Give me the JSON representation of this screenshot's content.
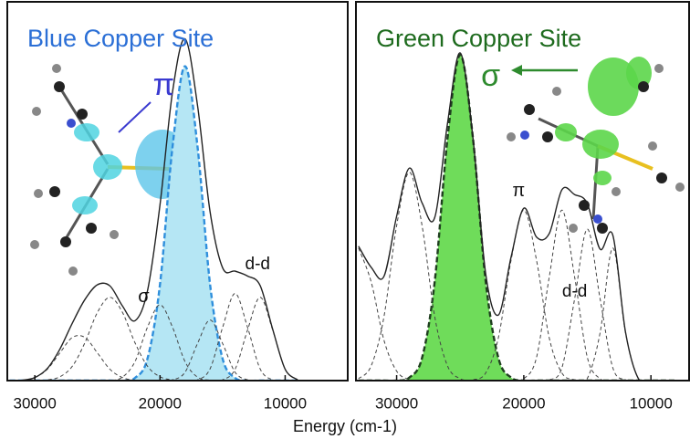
{
  "xlabel": "Energy (cm-1)",
  "chart_data": [
    {
      "type": "line",
      "title": "Blue Copper Site",
      "title_color": "#2b6fd6",
      "xlim": [
        32200,
        5000
      ],
      "xticks": [
        30000,
        20000,
        10000
      ],
      "ylim": [
        0,
        100
      ],
      "x": [
        32000,
        31000,
        30000,
        29000,
        28000,
        27000,
        26000,
        25000,
        24000,
        23000,
        22000,
        21000,
        20000,
        19000,
        18000,
        17000,
        16000,
        15000,
        14000,
        13000,
        12000,
        11000,
        10000,
        9000
      ],
      "series": [
        {
          "color": "#444444",
          "style": "dashed",
          "values": [
            0,
            0.1,
            0.8,
            3,
            7.3,
            11.4,
            11.4,
            7.3,
            3,
            0.8,
            0.1,
            0,
            0,
            0,
            0,
            0,
            0,
            0,
            0,
            0,
            0,
            0,
            0,
            0
          ]
        },
        {
          "color": "#444444",
          "style": "dashed",
          "values": [
            0,
            0,
            0,
            0.2,
            1,
            3.8,
            10,
            18,
            22,
            18,
            10,
            3.8,
            1,
            0.2,
            0,
            0,
            0,
            0,
            0,
            0,
            0,
            0,
            0,
            0
          ]
        },
        {
          "color": "#444444",
          "style": "dashed",
          "values": [
            0,
            0,
            0,
            0,
            0,
            0,
            0,
            0,
            0,
            0.9,
            5,
            14.1,
            20,
            14.1,
            5,
            0.9,
            0.1,
            0,
            0,
            0,
            0,
            0,
            0,
            0
          ]
        },
        {
          "color": "#2f8fdc",
          "style": "dashed",
          "fill": "#b5e6f4",
          "values": [
            0,
            0,
            0,
            0,
            0,
            0,
            0,
            0,
            0,
            0,
            0.7,
            5.8,
            25.4,
            61.7,
            83,
            61.7,
            25.4,
            5.8,
            0.7,
            0,
            0,
            0,
            0,
            0
          ]
        },
        {
          "color": "#444444",
          "style": "dashed",
          "values": [
            0,
            0,
            0,
            0,
            0,
            0,
            0,
            0,
            0,
            0,
            0,
            0,
            0,
            0.2,
            2.2,
            9.8,
            16,
            9.8,
            2.2,
            0.2,
            0,
            0,
            0,
            0
          ]
        },
        {
          "color": "#444444",
          "style": "dashed",
          "values": [
            0,
            0,
            0,
            0,
            0,
            0,
            0,
            0,
            0,
            0,
            0,
            0,
            0,
            0,
            0,
            0.2,
            3.1,
            14,
            23,
            14,
            3.1,
            0.2,
            0,
            0
          ]
        },
        {
          "color": "#444444",
          "style": "dashed",
          "values": [
            0,
            0,
            0,
            0,
            0,
            0,
            0,
            0,
            0,
            0,
            0,
            0,
            0,
            0,
            0,
            0,
            0,
            0.2,
            3,
            13.4,
            22,
            13.4,
            3,
            0.2
          ]
        },
        {
          "color": "#222222",
          "style": "solid",
          "values": [
            0,
            0.1,
            0.8,
            3.2,
            8.3,
            15.2,
            21.4,
            25.3,
            25,
            19.7,
            15.8,
            23.7,
            46.4,
            76.2,
            90.2,
            72.6,
            44.6,
            29.8,
            28.9,
            27.6,
            25.1,
            13.6,
            3,
            0.2
          ]
        }
      ],
      "annotations": [
        {
          "text": "π",
          "x": 19700,
          "y": 77.6,
          "color": "#3a3ad0",
          "size": 34
        },
        {
          "text": "σ",
          "x": 21300,
          "y": 22,
          "color": "#111111",
          "size": 20
        },
        {
          "text": "d-d",
          "x": 12200,
          "y": 30.6,
          "color": "#111111",
          "size": 19
        }
      ]
    },
    {
      "type": "line",
      "title": "Green Copper Site",
      "title_color": "#1e6b1e",
      "xlim": [
        33200,
        7000
      ],
      "xticks": [
        30000,
        20000,
        10000
      ],
      "ylim": [
        0,
        100
      ],
      "x": [
        33000,
        32000,
        31000,
        30000,
        29000,
        28000,
        27000,
        26000,
        25000,
        24000,
        23000,
        22000,
        21000,
        20000,
        19000,
        18000,
        17000,
        16000,
        15000,
        14000,
        13000,
        12000,
        11000,
        10000,
        9000,
        8000
      ],
      "series": [
        {
          "color": "#444444",
          "style": "dashed",
          "values": [
            35,
            26,
            10.7,
            2.5,
            0.3,
            0,
            0,
            0,
            0,
            0,
            0,
            0,
            0,
            0,
            0,
            0,
            0,
            0,
            0,
            0,
            0,
            0,
            0,
            0,
            0,
            0
          ]
        },
        {
          "color": "#444444",
          "style": "dashed",
          "values": [
            0.5,
            3.9,
            16.8,
            40.9,
            55,
            40.9,
            16.8,
            3.9,
            0.5,
            0,
            0,
            0,
            0,
            0,
            0,
            0,
            0,
            0,
            0,
            0,
            0,
            0,
            0,
            0,
            0,
            0
          ]
        },
        {
          "color": "#1f3f1f",
          "style": "dashed",
          "fill": "#6fdc5a",
          "values": [
            0,
            0,
            0,
            0,
            0.8,
            6,
            26.3,
            64,
            86,
            64,
            26.3,
            6,
            0.8,
            0,
            0,
            0,
            0,
            0,
            0,
            0,
            0,
            0,
            0,
            0,
            0,
            0
          ]
        },
        {
          "color": "#444444",
          "style": "dashed",
          "values": [
            0,
            0,
            0,
            0,
            0,
            0,
            0,
            0,
            0,
            0.2,
            2,
            11.3,
            31.8,
            45,
            31.8,
            11.3,
            2,
            0.2,
            0,
            0,
            0,
            0,
            0,
            0,
            0,
            0
          ]
        },
        {
          "color": "#444444",
          "style": "dashed",
          "values": [
            0,
            0,
            0,
            0,
            0,
            0,
            0,
            0,
            0,
            0,
            0,
            0,
            0,
            0.5,
            6.1,
            27.3,
            45,
            27.3,
            6.1,
            0.5,
            0,
            0,
            0,
            0,
            0,
            0
          ]
        },
        {
          "color": "#444444",
          "style": "dashed",
          "values": [
            0,
            0,
            0,
            0,
            0,
            0,
            0,
            0,
            0,
            0,
            0,
            0,
            0,
            0,
            0,
            0.2,
            3.4,
            21.6,
            40,
            21.6,
            3.4,
            0.2,
            0,
            0,
            0,
            0
          ]
        },
        {
          "color": "#444444",
          "style": "dashed",
          "values": [
            0,
            0,
            0,
            0,
            0,
            0,
            0,
            0,
            0,
            0,
            0,
            0,
            0,
            0,
            0,
            0,
            0,
            0,
            0.6,
            12.6,
            35,
            12.6,
            0.6,
            0,
            0,
            0
          ]
        },
        {
          "color": "#222222",
          "style": "solid",
          "values": [
            35.5,
            29.9,
            27.5,
            43.4,
            56.1,
            46.9,
            43.1,
            67.9,
            86.5,
            64.2,
            28.3,
            17.3,
            32.6,
            45.5,
            37.9,
            38.8,
            50.4,
            49.1,
            46.7,
            34.7,
            38.4,
            12.8,
            0.6,
            0,
            0,
            0
          ]
        }
      ],
      "annotations": [
        {
          "text": "σ",
          "x": 22600,
          "y": 80,
          "color": "#2e8b2e",
          "size": 34
        },
        {
          "text": "π",
          "x": 20400,
          "y": 50,
          "color": "#111111",
          "size": 20
        },
        {
          "text": "d-d",
          "x": 16000,
          "y": 23.4,
          "color": "#111111",
          "size": 19
        }
      ]
    }
  ]
}
